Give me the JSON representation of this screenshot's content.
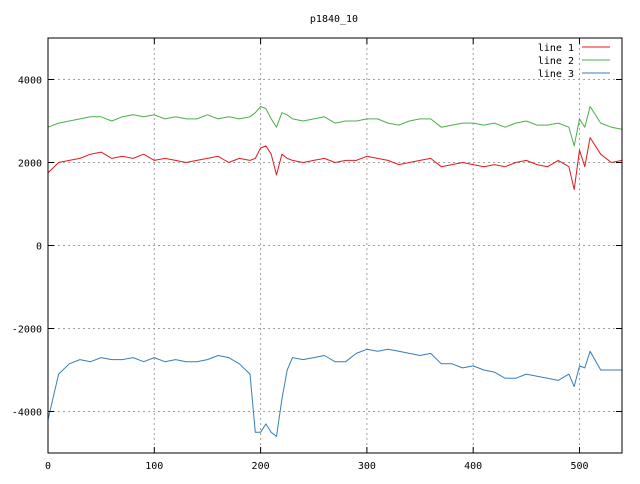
{
  "chart_data": {
    "type": "line",
    "title": "p1840_10",
    "xlabel": "",
    "ylabel": "",
    "xlim": [
      0,
      540
    ],
    "ylim": [
      -5000,
      5000
    ],
    "xticks": [
      0,
      100,
      200,
      300,
      400,
      500
    ],
    "yticks": [
      -4000,
      -2000,
      0,
      2000,
      4000
    ],
    "grid": true,
    "legend_position": "top-right",
    "x": [
      0,
      10,
      20,
      30,
      40,
      50,
      60,
      70,
      80,
      90,
      100,
      110,
      120,
      130,
      140,
      150,
      160,
      170,
      180,
      190,
      195,
      200,
      205,
      210,
      215,
      220,
      225,
      230,
      240,
      250,
      260,
      270,
      280,
      290,
      300,
      310,
      320,
      330,
      340,
      350,
      360,
      370,
      380,
      390,
      400,
      410,
      420,
      430,
      440,
      450,
      460,
      470,
      480,
      490,
      495,
      500,
      505,
      510,
      520,
      530,
      540
    ],
    "series": [
      {
        "name": "line 1",
        "color": "#e41a1c",
        "values": [
          1750,
          2000,
          2050,
          2100,
          2200,
          2250,
          2100,
          2150,
          2100,
          2200,
          2050,
          2100,
          2050,
          2000,
          2050,
          2100,
          2150,
          2000,
          2100,
          2050,
          2100,
          2350,
          2400,
          2200,
          1700,
          2200,
          2100,
          2050,
          2000,
          2050,
          2100,
          2000,
          2050,
          2050,
          2150,
          2100,
          2050,
          1950,
          2000,
          2050,
          2100,
          1900,
          1950,
          2000,
          1950,
          1900,
          1950,
          1900,
          2000,
          2050,
          1950,
          1900,
          2050,
          1900,
          1350,
          2300,
          1900,
          2600,
          2200,
          2000,
          2050
        ]
      },
      {
        "name": "line 2",
        "color": "#4daf4a",
        "values": [
          2850,
          2950,
          3000,
          3050,
          3100,
          3100,
          3000,
          3100,
          3150,
          3100,
          3150,
          3050,
          3100,
          3050,
          3050,
          3150,
          3050,
          3100,
          3050,
          3100,
          3200,
          3350,
          3300,
          3050,
          2850,
          3200,
          3150,
          3050,
          3000,
          3050,
          3100,
          2950,
          3000,
          3000,
          3050,
          3050,
          2950,
          2900,
          3000,
          3050,
          3050,
          2850,
          2900,
          2950,
          2950,
          2900,
          2950,
          2850,
          2950,
          3000,
          2900,
          2900,
          2950,
          2850,
          2400,
          3050,
          2850,
          3350,
          2950,
          2850,
          2800
        ]
      },
      {
        "name": "line 3",
        "color": "#377eb8",
        "values": [
          -4200,
          -3100,
          -2850,
          -2750,
          -2800,
          -2700,
          -2750,
          -2750,
          -2700,
          -2800,
          -2700,
          -2800,
          -2750,
          -2800,
          -2800,
          -2750,
          -2650,
          -2700,
          -2850,
          -3100,
          -4500,
          -4500,
          -4300,
          -4500,
          -4600,
          -3700,
          -3000,
          -2700,
          -2750,
          -2700,
          -2650,
          -2800,
          -2800,
          -2600,
          -2500,
          -2550,
          -2500,
          -2550,
          -2600,
          -2650,
          -2600,
          -2850,
          -2850,
          -2950,
          -2900,
          -3000,
          -3050,
          -3200,
          -3200,
          -3100,
          -3150,
          -3200,
          -3250,
          -3100,
          -3400,
          -2900,
          -2950,
          -2550,
          -3000,
          -3000,
          -3000
        ]
      }
    ]
  }
}
